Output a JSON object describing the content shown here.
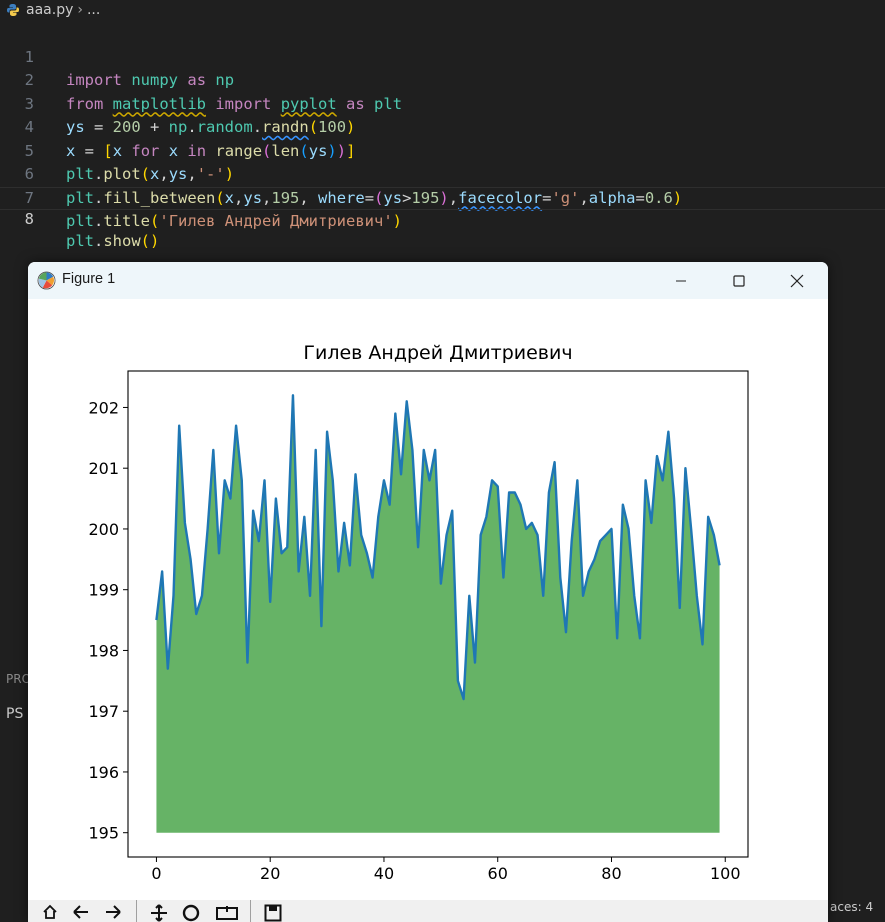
{
  "editor": {
    "filename": "aaa.py",
    "breadcrumb_rest": "...",
    "line_numbers": [
      "1",
      "2",
      "3",
      "4",
      "5",
      "6",
      "7",
      "8"
    ],
    "code": {
      "l1": {
        "a": "import",
        "b": "numpy",
        "c": "as",
        "d": "np"
      },
      "l2": {
        "a": "from",
        "b": "matplotlib",
        "c": "import",
        "d": "pyplot",
        "e": "as",
        "f": "plt"
      },
      "l3": {
        "a": "ys",
        "b": " = ",
        "c": "200",
        "d": " + ",
        "e": "np",
        "f": ".",
        "g": "random",
        "h": ".",
        "i": "randn",
        "j": "(",
        "k": "100",
        "l": ")"
      },
      "l4": {
        "a": "x",
        "b": " = ",
        "c": "[",
        "d": "x",
        "e": " for ",
        "f": "x",
        "g": " in ",
        "h": "range",
        "i": "(",
        "j": "len",
        "k": "(",
        "l": "ys",
        "m": ")",
        "n": ")",
        "o": "]"
      },
      "l5": {
        "a": "plt",
        "b": ".",
        "c": "plot",
        "d": "(",
        "e": "x",
        "f": ",",
        "g": "ys",
        "h": ",",
        "i": "'-'",
        "j": ")"
      },
      "l6": {
        "a": "plt",
        "b": ".",
        "c": "fill_between",
        "d": "(",
        "e": "x",
        "f": ",",
        "g": "ys",
        "h": ",",
        "i": "195",
        "j": ", ",
        "k": "where",
        "l": "=",
        "m": "(",
        "n": "ys",
        "o": ">",
        "p": "195",
        "q": ")",
        "r": ",",
        "s": "facecolor",
        "t": "=",
        "u": "'g'",
        "v": ",",
        "w": "alpha",
        "x": "=",
        "y": "0.6",
        "z": ")"
      },
      "l7": {
        "a": "plt",
        "b": ".",
        "c": "title",
        "d": "(",
        "e": "'Гилев Андрей Дмитриевич'",
        "f": ")"
      },
      "l8": {
        "a": "plt",
        "b": ".",
        "c": "show",
        "d": "(",
        "e": ")"
      }
    }
  },
  "panel": {
    "tab_prefix": "PRO",
    "terminal_prefix": "PS"
  },
  "statusbar": {
    "right_text": "aces: 4"
  },
  "figure_window": {
    "title": "Figure 1",
    "controls": {
      "minimize": "minimize-icon",
      "maximize": "maximize-icon",
      "close": "close-icon"
    },
    "toolbar_icons": [
      "home-icon",
      "back-icon",
      "forward-icon",
      "pan-icon",
      "zoom-icon",
      "configure-subplots-icon",
      "save-icon"
    ]
  },
  "chart_data": {
    "type": "area",
    "title": "Гилев Андрей Дмитриевич",
    "xlabel": "",
    "ylabel": "",
    "xlim": [
      -5,
      104
    ],
    "ylim": [
      194.6,
      202.6
    ],
    "xticks": [
      0,
      20,
      40,
      60,
      80,
      100
    ],
    "yticks": [
      195,
      196,
      197,
      198,
      199,
      200,
      201,
      202
    ],
    "baseline": 195,
    "line_color": "#1f77b4",
    "fill_color": "#008000",
    "fill_alpha": 0.6,
    "grid": false,
    "x": [
      0,
      1,
      2,
      3,
      4,
      5,
      6,
      7,
      8,
      9,
      10,
      11,
      12,
      13,
      14,
      15,
      16,
      17,
      18,
      19,
      20,
      21,
      22,
      23,
      24,
      25,
      26,
      27,
      28,
      29,
      30,
      31,
      32,
      33,
      34,
      35,
      36,
      37,
      38,
      39,
      40,
      41,
      42,
      43,
      44,
      45,
      46,
      47,
      48,
      49,
      50,
      51,
      52,
      53,
      54,
      55,
      56,
      57,
      58,
      59,
      60,
      61,
      62,
      63,
      64,
      65,
      66,
      67,
      68,
      69,
      70,
      71,
      72,
      73,
      74,
      75,
      76,
      77,
      78,
      79,
      80,
      81,
      82,
      83,
      84,
      85,
      86,
      87,
      88,
      89,
      90,
      91,
      92,
      93,
      94,
      95,
      96,
      97,
      98,
      99
    ],
    "y": [
      198.5,
      199.3,
      197.7,
      198.9,
      201.7,
      200.1,
      199.5,
      198.6,
      198.9,
      200.0,
      201.3,
      199.6,
      200.8,
      200.5,
      201.7,
      200.8,
      197.8,
      200.3,
      199.8,
      200.8,
      198.8,
      200.5,
      199.6,
      199.7,
      202.2,
      199.3,
      200.2,
      198.9,
      201.3,
      198.4,
      201.6,
      200.8,
      199.3,
      200.1,
      199.4,
      200.9,
      199.9,
      199.6,
      199.2,
      200.2,
      200.8,
      200.4,
      201.9,
      200.9,
      202.1,
      201.3,
      199.7,
      201.3,
      200.8,
      201.3,
      199.1,
      199.9,
      200.3,
      197.5,
      197.2,
      198.9,
      197.8,
      199.9,
      200.2,
      200.8,
      200.7,
      199.2,
      200.6,
      200.6,
      200.4,
      200.0,
      200.1,
      199.9,
      198.9,
      200.6,
      201.1,
      199.2,
      198.3,
      199.8,
      200.8,
      198.9,
      199.3,
      199.5,
      199.8,
      199.9,
      200.0,
      198.2,
      200.4,
      200.0,
      198.9,
      198.2,
      200.8,
      200.1,
      201.2,
      200.8,
      201.6,
      200.5,
      198.7,
      201.0,
      200.0,
      198.9,
      198.1,
      200.2,
      199.9,
      199.4
    ]
  }
}
